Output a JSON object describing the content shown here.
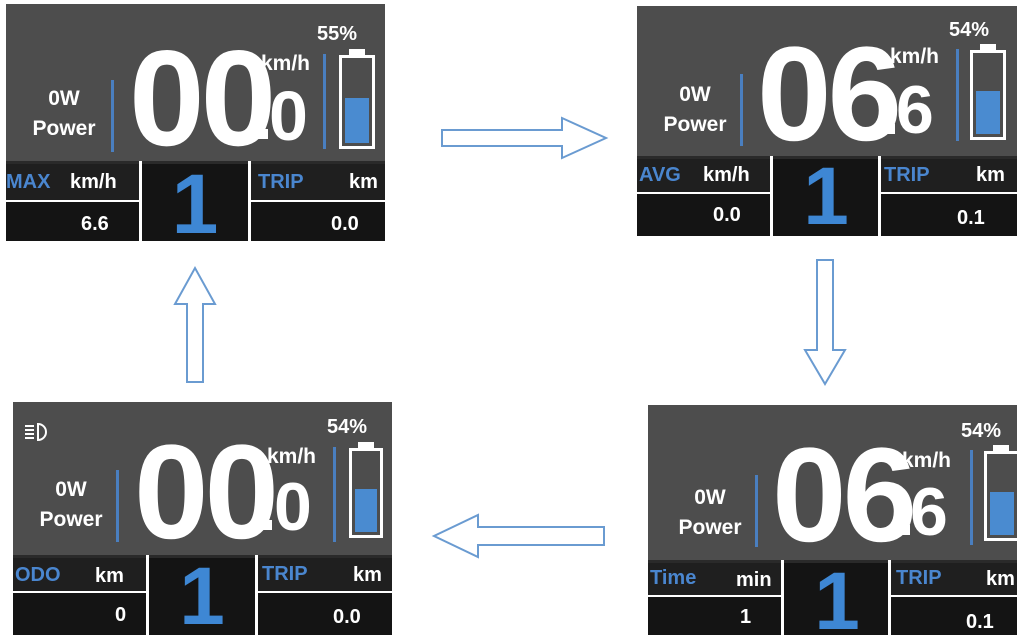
{
  "colors": {
    "panel_top": "#4d4d4d",
    "panel_bottom": "#141414",
    "accent_blue": "#4a86cf",
    "battery_fill": "#4a8bd0",
    "arrow_outline": "#6a9bd1"
  },
  "screens": [
    {
      "power_value": "0W",
      "power_label": "Power",
      "speed_int": "00",
      "speed_dec": "0",
      "speed_unit": "km/h",
      "battery_pct": "55%",
      "battery_level": 0.55,
      "left_label": "MAX",
      "left_unit": "km/h",
      "left_value": "6.6",
      "gear": "1",
      "right_label": "TRIP",
      "right_unit": "km",
      "right_value": "0.0"
    },
    {
      "power_value": "0W",
      "power_label": "Power",
      "speed_int": "06",
      "speed_dec": "6",
      "speed_unit": "km/h",
      "battery_pct": "54%",
      "battery_level": 0.54,
      "left_label": "AVG",
      "left_unit": "km/h",
      "left_value": "0.0",
      "gear": "1",
      "right_label": "TRIP",
      "right_unit": "km",
      "right_value": "0.1"
    },
    {
      "power_value": "0W",
      "power_label": "Power",
      "speed_int": "06",
      "speed_dec": "6",
      "speed_unit": "km/h",
      "battery_pct": "54%",
      "battery_level": 0.54,
      "left_label": "Time",
      "left_unit": "min",
      "left_value": "1",
      "gear": "1",
      "right_label": "TRIP",
      "right_unit": "km",
      "right_value": "0.1"
    },
    {
      "power_value": "0W",
      "power_label": "Power",
      "speed_int": "00",
      "speed_dec": "0",
      "speed_unit": "km/h",
      "battery_pct": "54%",
      "battery_level": 0.54,
      "left_label": "ODO",
      "left_unit": "km",
      "left_value": "0",
      "gear": "1",
      "right_label": "TRIP",
      "right_unit": "km",
      "right_value": "0.0",
      "headlight_icon": "headlight-icon"
    }
  ],
  "arrows": [
    "arrow-right",
    "arrow-down",
    "arrow-left",
    "arrow-up"
  ]
}
